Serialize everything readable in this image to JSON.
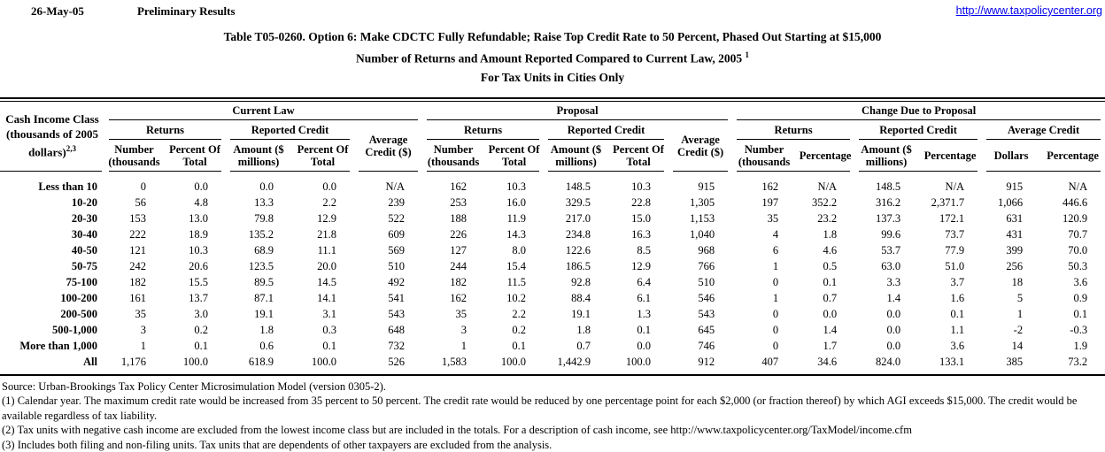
{
  "header": {
    "date": "26-May-05",
    "status": "Preliminary Results",
    "link": "http://www.taxpolicycenter.org"
  },
  "title": {
    "line1": "Table T05-0260. Option 6: Make CDCTC Fully Refundable; Raise Top Credit Rate to 50 Percent, Phased Out Starting at $15,000",
    "line2": "Number of Returns and Amount Reported Compared to Current Law, 2005",
    "line2_sup": "1",
    "line3": "For Tax Units in Cities Only"
  },
  "table": {
    "stub_head": {
      "line1": "Cash Income Class",
      "line2": "(thousands of 2005",
      "line3": "dollars)",
      "sup": "2,3"
    },
    "current_law": {
      "label": "Current Law",
      "returns": "Returns",
      "reported": "Reported Credit",
      "avg": "Average Credit ($)",
      "col_number": "Number (thousands",
      "col_pct": "Percent Of Total",
      "col_amount": "Amount ($ millions)",
      "col_pct2": "Percent Of Total"
    },
    "proposal": {
      "label": "Proposal",
      "returns": "Returns",
      "reported": "Reported Credit",
      "avg": "Average Credit ($)",
      "col_number": "Number (thousands",
      "col_pct": "Percent Of Total",
      "col_amount": "Amount ($ millions)",
      "col_pct2": "Percent Of Total"
    },
    "change": {
      "label": "Change Due to Proposal",
      "returns": "Returns",
      "reported": "Reported Credit",
      "avg": "Average Credit",
      "col_number": "Number (thousands",
      "col_pctg": "Percentage",
      "col_amount": "Amount ($ millions)",
      "col_pctg2": "Percentage",
      "col_dollars": "Dollars",
      "col_pctg3": "Percentage"
    },
    "rows": [
      {
        "label": "Less than 10",
        "values": [
          "0",
          "0.0",
          "0.0",
          "0.0",
          "N/A",
          "162",
          "10.3",
          "148.5",
          "10.3",
          "915",
          "162",
          "N/A",
          "148.5",
          "N/A",
          "915",
          "N/A"
        ]
      },
      {
        "label": "10-20",
        "values": [
          "56",
          "4.8",
          "13.3",
          "2.2",
          "239",
          "253",
          "16.0",
          "329.5",
          "22.8",
          "1,305",
          "197",
          "352.2",
          "316.2",
          "2,371.7",
          "1,066",
          "446.6"
        ]
      },
      {
        "label": "20-30",
        "values": [
          "153",
          "13.0",
          "79.8",
          "12.9",
          "522",
          "188",
          "11.9",
          "217.0",
          "15.0",
          "1,153",
          "35",
          "23.2",
          "137.3",
          "172.1",
          "631",
          "120.9"
        ]
      },
      {
        "label": "30-40",
        "values": [
          "222",
          "18.9",
          "135.2",
          "21.8",
          "609",
          "226",
          "14.3",
          "234.8",
          "16.3",
          "1,040",
          "4",
          "1.8",
          "99.6",
          "73.7",
          "431",
          "70.7"
        ]
      },
      {
        "label": "40-50",
        "values": [
          "121",
          "10.3",
          "68.9",
          "11.1",
          "569",
          "127",
          "8.0",
          "122.6",
          "8.5",
          "968",
          "6",
          "4.6",
          "53.7",
          "77.9",
          "399",
          "70.0"
        ]
      },
      {
        "label": "50-75",
        "values": [
          "242",
          "20.6",
          "123.5",
          "20.0",
          "510",
          "244",
          "15.4",
          "186.5",
          "12.9",
          "766",
          "1",
          "0.5",
          "63.0",
          "51.0",
          "256",
          "50.3"
        ]
      },
      {
        "label": "75-100",
        "values": [
          "182",
          "15.5",
          "89.5",
          "14.5",
          "492",
          "182",
          "11.5",
          "92.8",
          "6.4",
          "510",
          "0",
          "0.1",
          "3.3",
          "3.7",
          "18",
          "3.6"
        ]
      },
      {
        "label": "100-200",
        "values": [
          "161",
          "13.7",
          "87.1",
          "14.1",
          "541",
          "162",
          "10.2",
          "88.4",
          "6.1",
          "546",
          "1",
          "0.7",
          "1.4",
          "1.6",
          "5",
          "0.9"
        ]
      },
      {
        "label": "200-500",
        "values": [
          "35",
          "3.0",
          "19.1",
          "3.1",
          "543",
          "35",
          "2.2",
          "19.1",
          "1.3",
          "543",
          "0",
          "0.0",
          "0.0",
          "0.1",
          "1",
          "0.1"
        ]
      },
      {
        "label": "500-1,000",
        "values": [
          "3",
          "0.2",
          "1.8",
          "0.3",
          "648",
          "3",
          "0.2",
          "1.8",
          "0.1",
          "645",
          "0",
          "1.4",
          "0.0",
          "1.1",
          "-2",
          "-0.3"
        ]
      },
      {
        "label": "More than 1,000",
        "values": [
          "1",
          "0.1",
          "0.6",
          "0.1",
          "732",
          "1",
          "0.1",
          "0.7",
          "0.0",
          "746",
          "0",
          "1.7",
          "0.0",
          "3.6",
          "14",
          "1.9"
        ]
      },
      {
        "label": "All",
        "values": [
          "1,176",
          "100.0",
          "618.9",
          "100.0",
          "526",
          "1,583",
          "100.0",
          "1,442.9",
          "100.0",
          "912",
          "407",
          "34.6",
          "824.0",
          "133.1",
          "385",
          "73.2"
        ]
      }
    ]
  },
  "footnotes": {
    "source": "Source: Urban-Brookings Tax Policy Center Microsimulation Model (version 0305-2).",
    "note1": "(1) Calendar year. The maximum credit rate would be increased from 35 percent to 50 percent.  The credit rate would be reduced by one percentage point for each $2,000 (or fraction thereof) by which AGI exceeds $15,000.  The credit would be available regardless of tax liability.",
    "note2": "(2) Tax units with negative cash income are excluded from the lowest income class but are included in the totals. For a description of cash income, see http://www.taxpolicycenter.org/TaxModel/income.cfm",
    "note3": "(3) Includes both filing and non-filing units.  Tax units that are dependents of other taxpayers are excluded from the analysis."
  }
}
